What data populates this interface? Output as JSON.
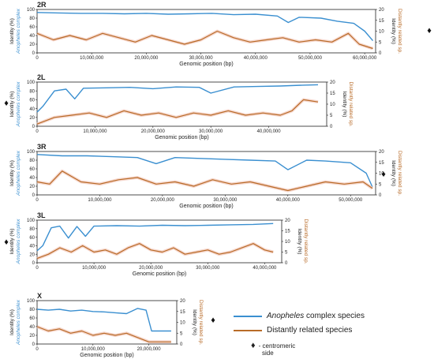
{
  "colors": {
    "anopheles": "#3a8fd0",
    "distant": "#b86b28",
    "distant_band": "#f2c6b8",
    "axis": "#222222"
  },
  "legend": {
    "anopheles_label_em": "Anopheles",
    "anopheles_label_rest": " complex species",
    "distant_label": "Distantly related species"
  },
  "note": {
    "marker": "♦",
    "line1": "- centromeric",
    "line2": "side"
  },
  "chart_data": [
    {
      "type": "line",
      "title": "2R",
      "xlabel": "Genomic position (bp)",
      "ylabel_left_a": "Identity (%)",
      "ylabel_left_b": "Anopheles complex",
      "ylabel_right_a": "Identity (%)",
      "ylabel_right_b": "Distantly related sp.",
      "xlim": [
        0,
        62000000
      ],
      "x_ticks": [
        0,
        10000000,
        20000000,
        30000000,
        40000000,
        50000000,
        60000000
      ],
      "x_tick_labels": [
        "0",
        "10,000,000",
        "20,000,000",
        "30,000,000",
        "40,000,000",
        "50,000,000",
        "60,000,000"
      ],
      "y_left_ticks": [
        "0",
        "20",
        "40",
        "60",
        "80",
        "100"
      ],
      "y_right_ticks": [
        "0",
        "5",
        "10",
        "15",
        "20"
      ],
      "ylim_left": [
        0,
        100
      ],
      "ylim_right": [
        0,
        20
      ],
      "centromere_side": "right",
      "series": [
        {
          "key": "anopheles",
          "axis": "left",
          "x": [
            0,
            4000000,
            8000000,
            12000000,
            16000000,
            20000000,
            24000000,
            28000000,
            32000000,
            36000000,
            40000000,
            44000000,
            46000000,
            48000000,
            52000000,
            55000000,
            58000000,
            60000000,
            61500000
          ],
          "y": [
            93,
            92,
            91,
            91,
            90,
            91,
            89,
            90,
            91,
            88,
            89,
            85,
            70,
            82,
            80,
            73,
            68,
            50,
            28
          ]
        },
        {
          "key": "distant",
          "axis": "right",
          "x": [
            0,
            3000000,
            6000000,
            9000000,
            12000000,
            15000000,
            18000000,
            21000000,
            24000000,
            27000000,
            30000000,
            33000000,
            36000000,
            39000000,
            42000000,
            45000000,
            48000000,
            51000000,
            54000000,
            57000000,
            59000000,
            61500000
          ],
          "y": [
            9,
            6,
            8,
            6,
            9,
            7,
            5,
            8,
            6,
            4,
            6,
            10,
            7,
            5,
            6,
            7,
            5,
            6,
            5,
            9,
            4,
            2
          ]
        }
      ]
    },
    {
      "type": "line",
      "title": "2L",
      "xlabel": "Genomic position (bp)",
      "ylabel_left_a": "Identity (%)",
      "ylabel_left_b": "Anopheles complex",
      "ylabel_right_a": "Identity (%)",
      "ylabel_right_b": "Distantly related sp.",
      "xlim": [
        0,
        50000000
      ],
      "x_ticks": [
        0,
        10000000,
        20000000,
        30000000,
        40000000
      ],
      "x_tick_labels": [
        "0",
        "10,000,000",
        "20,000,000",
        "30,000,000",
        "40,000,000"
      ],
      "y_left_ticks": [
        "0",
        "20",
        "40",
        "60",
        "80",
        "100"
      ],
      "y_right_ticks": [
        "0",
        "5",
        "10",
        "15",
        "20"
      ],
      "ylim_left": [
        0,
        100
      ],
      "ylim_right": [
        0,
        20
      ],
      "centromere_side": "left",
      "series": [
        {
          "key": "anopheles",
          "axis": "left",
          "x": [
            0,
            1000000,
            3000000,
            5000000,
            6500000,
            8000000,
            12000000,
            16000000,
            20000000,
            24000000,
            28000000,
            30000000,
            34000000,
            38000000,
            42000000,
            46000000,
            48500000
          ],
          "y": [
            32,
            45,
            80,
            84,
            62,
            86,
            87,
            88,
            85,
            89,
            88,
            75,
            89,
            90,
            91,
            93,
            94
          ]
        },
        {
          "key": "distant",
          "axis": "right",
          "x": [
            0,
            3000000,
            6000000,
            9000000,
            12000000,
            15000000,
            18000000,
            21000000,
            24000000,
            27000000,
            30000000,
            33000000,
            36000000,
            39000000,
            42000000,
            44000000,
            46000000,
            48500000
          ],
          "y": [
            1,
            4,
            5,
            6,
            4,
            7,
            5,
            6,
            4,
            6,
            5,
            7,
            5,
            6,
            5,
            7,
            12,
            11
          ]
        }
      ]
    },
    {
      "type": "line",
      "title": "3R",
      "xlabel": "Genomic position (bp)",
      "ylabel_left_a": "Identity (%)",
      "ylabel_left_b": "Anopheles complex",
      "ylabel_right_a": "Identity (%)",
      "ylabel_right_b": "Distantly related sp.",
      "xlim": [
        0,
        54000000
      ],
      "x_ticks": [
        0,
        10000000,
        20000000,
        30000000,
        40000000,
        50000000
      ],
      "x_tick_labels": [
        "0",
        "10,000,000",
        "20,000,000",
        "30,000,000",
        "40,000,000",
        "50,000,000"
      ],
      "y_left_ticks": [
        "0",
        "20",
        "40",
        "60",
        "80",
        "100"
      ],
      "y_right_ticks": [
        "0",
        "5",
        "10",
        "15",
        "20"
      ],
      "ylim_left": [
        0,
        100
      ],
      "ylim_right": [
        0,
        20
      ],
      "centromere_side": "right",
      "series": [
        {
          "key": "anopheles",
          "axis": "left",
          "x": [
            0,
            4000000,
            8000000,
            12000000,
            16000000,
            19000000,
            22000000,
            26000000,
            30000000,
            34000000,
            38000000,
            40000000,
            43000000,
            46000000,
            50000000,
            52500000,
            53500000
          ],
          "y": [
            93,
            90,
            90,
            88,
            86,
            72,
            86,
            84,
            82,
            80,
            78,
            58,
            80,
            78,
            74,
            50,
            18
          ]
        },
        {
          "key": "distant",
          "axis": "right",
          "x": [
            0,
            2000000,
            4000000,
            7000000,
            10000000,
            13000000,
            16000000,
            19000000,
            22000000,
            25000000,
            28000000,
            31000000,
            34000000,
            37000000,
            40000000,
            43000000,
            46000000,
            49000000,
            52000000,
            53500000
          ],
          "y": [
            6,
            5,
            11,
            6,
            5,
            7,
            8,
            5,
            6,
            4,
            7,
            5,
            6,
            4,
            2,
            4,
            6,
            5,
            6,
            3
          ]
        }
      ]
    },
    {
      "type": "line",
      "title": "3L",
      "xlabel": "Genomic position (bp)",
      "ylabel_left_a": "Identity (%)",
      "ylabel_left_b": "Anopheles complex",
      "ylabel_right_a": "Identity (%)",
      "ylabel_right_b": "Distantly related sp.",
      "xlim": [
        0,
        43000000
      ],
      "x_ticks": [
        0,
        10000000,
        20000000,
        30000000,
        40000000
      ],
      "x_tick_labels": [
        "0",
        "10,000,000",
        "20,000,000",
        "30,000,000",
        "40,000,000"
      ],
      "y_left_ticks": [
        "0",
        "20",
        "40",
        "60",
        "80",
        "100"
      ],
      "y_right_ticks": [
        "0",
        "5",
        "10",
        "15",
        "20"
      ],
      "ylim_left": [
        0,
        100
      ],
      "ylim_right": [
        0,
        20
      ],
      "centromere_side": "left",
      "series": [
        {
          "key": "anopheles",
          "axis": "left",
          "x": [
            0,
            1000000,
            2500000,
            4000000,
            5500000,
            7000000,
            8500000,
            10000000,
            14000000,
            18000000,
            22000000,
            26000000,
            30000000,
            34000000,
            38000000,
            41500000
          ],
          "y": [
            28,
            40,
            82,
            86,
            58,
            85,
            62,
            86,
            87,
            86,
            88,
            87,
            88,
            89,
            90,
            92
          ]
        },
        {
          "key": "distant",
          "axis": "right",
          "x": [
            0,
            2000000,
            4000000,
            6000000,
            8000000,
            10000000,
            12000000,
            14000000,
            16000000,
            18000000,
            20000000,
            22000000,
            24000000,
            26000000,
            28000000,
            30000000,
            32000000,
            34000000,
            36000000,
            38000000,
            40000000,
            41500000
          ],
          "y": [
            2,
            4,
            7,
            5,
            8,
            5,
            6,
            4,
            7,
            9,
            6,
            5,
            7,
            4,
            5,
            6,
            4,
            5,
            7,
            9,
            6,
            5
          ]
        }
      ]
    },
    {
      "type": "line",
      "title": "X",
      "xlabel": "Genomic position (bp)",
      "ylabel_left_a": "Identity (%)",
      "ylabel_left_b": "Anopheles complex",
      "ylabel_right_a": "Identity (%)",
      "ylabel_right_b": "Distantly related sp.",
      "xlim": [
        0,
        25000000
      ],
      "x_ticks": [
        0,
        10000000,
        20000000
      ],
      "x_tick_labels": [
        "0",
        "10,000,000",
        "20,000,000"
      ],
      "y_left_ticks": [
        "0",
        "20",
        "40",
        "60",
        "80",
        "100"
      ],
      "y_right_ticks": [
        "0",
        "5",
        "10",
        "15",
        "20"
      ],
      "ylim_left": [
        0,
        100
      ],
      "ylim_right": [
        0,
        20
      ],
      "centromere_side": "right",
      "series": [
        {
          "key": "anopheles",
          "axis": "left",
          "x": [
            0,
            2000000,
            4000000,
            6000000,
            8000000,
            10000000,
            12000000,
            14000000,
            16000000,
            18000000,
            19500000,
            20500000,
            22000000,
            24000000
          ],
          "y": [
            80,
            78,
            80,
            76,
            78,
            75,
            74,
            72,
            70,
            82,
            78,
            30,
            30,
            30
          ]
        },
        {
          "key": "distant",
          "axis": "right",
          "x": [
            0,
            2000000,
            4000000,
            6000000,
            8000000,
            10000000,
            12000000,
            14000000,
            16000000,
            18000000,
            20000000,
            22000000,
            24000000
          ],
          "y": [
            8,
            6,
            7,
            5,
            6,
            4,
            5,
            4,
            5,
            3,
            1,
            1,
            1
          ]
        }
      ]
    }
  ]
}
